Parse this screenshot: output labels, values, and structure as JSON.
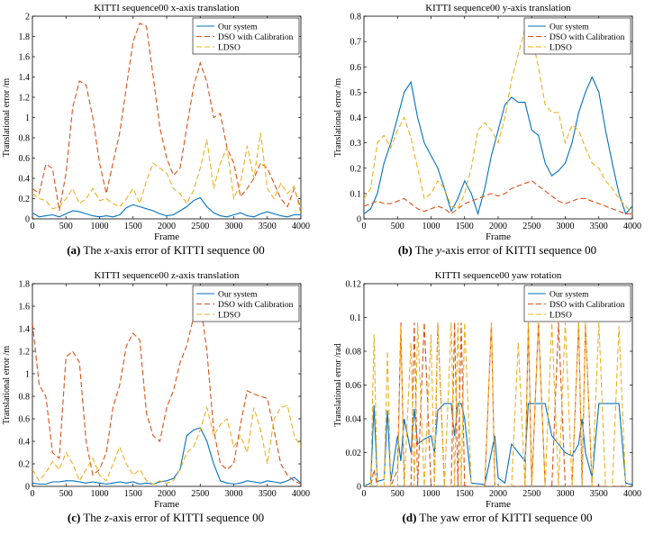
{
  "chart_data": [
    {
      "type": "line",
      "title": "KITTI sequence00 x-axis translation",
      "xlabel": "Frame",
      "ylabel": "Translational error /m",
      "xlim": [
        0,
        4000
      ],
      "ylim": [
        0,
        2
      ],
      "xticks": [
        "0",
        "500",
        "1000",
        "1500",
        "2000",
        "2500",
        "3000",
        "3500",
        "4000"
      ],
      "yticks": [
        "0",
        "0.2",
        "0.4",
        "0.6",
        "0.8",
        "1",
        "1.2",
        "1.4",
        "1.6",
        "1.8",
        "2"
      ],
      "legend_position": "top-right",
      "x": [
        0,
        100,
        200,
        300,
        400,
        500,
        600,
        700,
        800,
        900,
        1000,
        1100,
        1200,
        1300,
        1400,
        1500,
        1600,
        1700,
        1800,
        1900,
        2000,
        2100,
        2200,
        2300,
        2400,
        2500,
        2600,
        2700,
        2800,
        2900,
        3000,
        3100,
        3200,
        3300,
        3400,
        3500,
        3600,
        3700,
        3800,
        3900,
        4000
      ],
      "series": [
        {
          "name": "Our system",
          "color": "#0072BD",
          "dash": "solid",
          "values": [
            0.06,
            0.02,
            0.03,
            0.04,
            0.02,
            0.05,
            0.08,
            0.07,
            0.05,
            0.03,
            0.02,
            0.03,
            0.02,
            0.04,
            0.11,
            0.14,
            0.12,
            0.1,
            0.08,
            0.05,
            0.03,
            0.04,
            0.08,
            0.12,
            0.18,
            0.21,
            0.12,
            0.06,
            0.03,
            0.02,
            0.04,
            0.06,
            0.03,
            0.02,
            0.05,
            0.07,
            0.05,
            0.03,
            0.02,
            0.04,
            0.04
          ]
        },
        {
          "name": "DSO with Calibration",
          "color": "#D95319",
          "dash": "6,3",
          "values": [
            0.3,
            0.25,
            0.54,
            0.5,
            0.08,
            0.45,
            1.1,
            1.36,
            1.32,
            1.0,
            0.55,
            0.25,
            0.55,
            0.85,
            1.3,
            1.75,
            1.93,
            1.9,
            1.4,
            0.9,
            0.6,
            0.43,
            0.5,
            0.9,
            1.3,
            1.54,
            1.35,
            1.0,
            1.04,
            0.7,
            0.55,
            0.22,
            0.3,
            0.4,
            0.55,
            0.5,
            0.35,
            0.2,
            0.12,
            0.3,
            0.1
          ]
        },
        {
          "name": "LDSO",
          "color": "#EDB120",
          "dash": "6,3",
          "values": [
            0.25,
            0.2,
            0.18,
            0.1,
            0.12,
            0.2,
            0.3,
            0.15,
            0.2,
            0.3,
            0.18,
            0.2,
            0.15,
            0.12,
            0.2,
            0.3,
            0.15,
            0.38,
            0.55,
            0.5,
            0.45,
            0.3,
            0.25,
            0.15,
            0.28,
            0.5,
            0.78,
            0.3,
            0.55,
            0.7,
            0.2,
            0.35,
            0.72,
            0.4,
            0.85,
            0.3,
            0.2,
            0.35,
            0.25,
            0.32,
            0.05
          ]
        }
      ]
    },
    {
      "type": "line",
      "title": "KITTI sequence00 y-axis translation",
      "xlabel": "Frame",
      "ylabel": "Translational error /m",
      "xlim": [
        0,
        4000
      ],
      "ylim": [
        0,
        0.8
      ],
      "xticks": [
        "0",
        "500",
        "1000",
        "1500",
        "2000",
        "2500",
        "3000",
        "3500",
        "4000"
      ],
      "yticks": [
        "0",
        "0.1",
        "0.2",
        "0.3",
        "0.4",
        "0.5",
        "0.6",
        "0.7",
        "0.8"
      ],
      "legend_position": "top-right",
      "x": [
        0,
        100,
        200,
        300,
        400,
        500,
        600,
        700,
        800,
        900,
        1000,
        1100,
        1200,
        1300,
        1400,
        1500,
        1600,
        1700,
        1800,
        1900,
        2000,
        2100,
        2200,
        2300,
        2400,
        2500,
        2600,
        2700,
        2800,
        2900,
        3000,
        3100,
        3200,
        3300,
        3400,
        3500,
        3600,
        3700,
        3800,
        3900,
        4000
      ],
      "series": [
        {
          "name": "Our system",
          "color": "#0072BD",
          "dash": "solid",
          "values": [
            0.02,
            0.04,
            0.1,
            0.22,
            0.3,
            0.4,
            0.5,
            0.54,
            0.4,
            0.3,
            0.25,
            0.2,
            0.12,
            0.03,
            0.08,
            0.15,
            0.1,
            0.02,
            0.12,
            0.25,
            0.35,
            0.45,
            0.48,
            0.46,
            0.46,
            0.35,
            0.33,
            0.22,
            0.17,
            0.19,
            0.22,
            0.3,
            0.42,
            0.5,
            0.56,
            0.5,
            0.35,
            0.22,
            0.1,
            0.02,
            0.05
          ]
        },
        {
          "name": "DSO with Calibration",
          "color": "#D95319",
          "dash": "6,3",
          "values": [
            0.05,
            0.06,
            0.07,
            0.06,
            0.06,
            0.07,
            0.08,
            0.06,
            0.04,
            0.03,
            0.04,
            0.05,
            0.04,
            0.02,
            0.04,
            0.06,
            0.07,
            0.08,
            0.09,
            0.1,
            0.09,
            0.1,
            0.12,
            0.13,
            0.14,
            0.15,
            0.13,
            0.11,
            0.09,
            0.07,
            0.06,
            0.07,
            0.08,
            0.08,
            0.07,
            0.06,
            0.05,
            0.04,
            0.03,
            0.02,
            0.02
          ]
        },
        {
          "name": "LDSO",
          "color": "#EDB120",
          "dash": "6,3",
          "values": [
            0.08,
            0.12,
            0.3,
            0.33,
            0.28,
            0.35,
            0.4,
            0.32,
            0.2,
            0.08,
            0.1,
            0.15,
            0.12,
            0.05,
            0.04,
            0.1,
            0.2,
            0.35,
            0.38,
            0.35,
            0.3,
            0.4,
            0.55,
            0.65,
            0.75,
            0.72,
            0.6,
            0.45,
            0.42,
            0.42,
            0.3,
            0.37,
            0.35,
            0.28,
            0.22,
            0.2,
            0.15,
            0.12,
            0.08,
            0.05,
            0.02
          ]
        }
      ]
    },
    {
      "type": "line",
      "title": "KITTI sequence00 z-axis translation",
      "xlabel": "Frame",
      "ylabel": "Translational error /m",
      "xlim": [
        0,
        4000
      ],
      "ylim": [
        0,
        1.8
      ],
      "xticks": [
        "0",
        "500",
        "1000",
        "1500",
        "2000",
        "2500",
        "3000",
        "3500",
        "4000"
      ],
      "yticks": [
        "0",
        "0.2",
        "0.4",
        "0.6",
        "0.8",
        "1",
        "1.2",
        "1.4",
        "1.6",
        "1.8"
      ],
      "legend_position": "top-right",
      "x": [
        0,
        100,
        200,
        300,
        400,
        500,
        600,
        700,
        800,
        900,
        1000,
        1100,
        1200,
        1300,
        1400,
        1500,
        1600,
        1700,
        1800,
        1900,
        2000,
        2100,
        2200,
        2300,
        2400,
        2500,
        2600,
        2700,
        2800,
        2900,
        3000,
        3100,
        3200,
        3300,
        3400,
        3500,
        3600,
        3700,
        3800,
        3900,
        4000
      ],
      "series": [
        {
          "name": "Our system",
          "color": "#0072BD",
          "dash": "solid",
          "values": [
            0.03,
            0.02,
            0.02,
            0.04,
            0.04,
            0.05,
            0.05,
            0.04,
            0.03,
            0.04,
            0.03,
            0.02,
            0.03,
            0.04,
            0.03,
            0.04,
            0.02,
            0.03,
            0.02,
            0.04,
            0.05,
            0.07,
            0.15,
            0.45,
            0.5,
            0.52,
            0.4,
            0.2,
            0.05,
            0.03,
            0.02,
            0.03,
            0.05,
            0.04,
            0.03,
            0.05,
            0.04,
            0.03,
            0.05,
            0.08,
            0.03
          ]
        },
        {
          "name": "DSO with Calibration",
          "color": "#D95319",
          "dash": "6,3",
          "values": [
            1.45,
            0.9,
            0.8,
            0.3,
            0.25,
            1.15,
            1.2,
            1.1,
            0.4,
            0.1,
            0.15,
            0.3,
            0.7,
            0.9,
            1.25,
            1.36,
            1.3,
            0.65,
            0.45,
            0.4,
            0.7,
            0.85,
            1.1,
            1.25,
            1.5,
            1.65,
            1.2,
            0.5,
            0.2,
            0.15,
            0.2,
            0.55,
            0.85,
            0.82,
            0.8,
            0.78,
            0.5,
            0.2,
            0.1,
            0.05,
            0.02
          ]
        },
        {
          "name": "LDSO",
          "color": "#EDB120",
          "dash": "6,3",
          "values": [
            0.15,
            0.05,
            0.12,
            0.22,
            0.15,
            0.3,
            0.2,
            0.05,
            0.15,
            0.25,
            0.1,
            0.05,
            0.2,
            0.35,
            0.2,
            0.1,
            0.15,
            0.05,
            0.02,
            0.05,
            0.03,
            0.05,
            0.15,
            0.3,
            0.35,
            0.5,
            0.7,
            0.45,
            0.55,
            0.6,
            0.35,
            0.45,
            0.3,
            0.7,
            0.5,
            0.2,
            0.6,
            0.7,
            0.72,
            0.45,
            0.35
          ]
        }
      ]
    },
    {
      "type": "line",
      "title": "KITTI sequence00 yaw rotation",
      "xlabel": "Frame",
      "ylabel": "Translational error /rad",
      "xlim": [
        0,
        4000
      ],
      "ylim": [
        0,
        0.12
      ],
      "xticks": [
        "0",
        "500",
        "1000",
        "1500",
        "2000",
        "2500",
        "3000",
        "3500",
        "4000"
      ],
      "yticks": [
        "0",
        "0.02",
        "0.04",
        "0.06",
        "0.08",
        "0.1",
        "0.12"
      ],
      "legend_position": "top-right",
      "x": [
        0,
        100,
        150,
        200,
        300,
        350,
        400,
        500,
        550,
        600,
        700,
        750,
        800,
        900,
        1000,
        1050,
        1100,
        1200,
        1300,
        1350,
        1400,
        1450,
        1500,
        1600,
        1800,
        1900,
        1950,
        2000,
        2100,
        2200,
        2300,
        2400,
        2450,
        2500,
        2600,
        2700,
        2800,
        2900,
        3000,
        3100,
        3200,
        3250,
        3300,
        3400,
        3500,
        3600,
        3700,
        3800,
        3900,
        4000
      ],
      "series": [
        {
          "name": "Our system",
          "color": "#0072BD",
          "dash": "solid",
          "values": [
            0.0,
            0.002,
            0.048,
            0.003,
            0.004,
            0.045,
            0.003,
            0.03,
            0.015,
            0.04,
            0.02,
            0.046,
            0.025,
            0.028,
            0.03,
            0.02,
            0.045,
            0.049,
            0.049,
            0.03,
            0.049,
            0.049,
            0.04,
            0.002,
            0.001,
            0.02,
            0.03,
            0.005,
            0.002,
            0.025,
            0.02,
            0.015,
            0.049,
            0.049,
            0.049,
            0.049,
            0.03,
            0.025,
            0.02,
            0.018,
            0.025,
            0.04,
            0.02,
            0.005,
            0.049,
            0.049,
            0.049,
            0.049,
            0.002,
            0.001
          ]
        },
        {
          "name": "DSO with Calibration",
          "color": "#D95319",
          "dash": "6,3",
          "values": [
            0.0,
            0.0,
            0.01,
            0.0,
            0.0,
            0.0,
            0.0,
            0.01,
            0.097,
            0.0,
            0.0,
            0.097,
            0.0,
            0.097,
            0.0,
            0.0,
            0.097,
            0.0,
            0.0,
            0.097,
            0.0,
            0.097,
            0.0,
            0.0,
            0.0,
            0.097,
            0.0,
            0.0,
            0.0,
            0.0,
            0.0,
            0.0,
            0.097,
            0.0,
            0.097,
            0.0,
            0.0,
            0.097,
            0.0,
            0.0,
            0.097,
            0.0,
            0.097,
            0.0,
            0.0,
            0.0,
            0.0,
            0.0,
            0.0,
            0.0
          ]
        },
        {
          "name": "LDSO",
          "color": "#EDB120",
          "dash": "6,3",
          "values": [
            0.0,
            0.0,
            0.09,
            0.0,
            0.0,
            0.08,
            0.0,
            0.0,
            0.095,
            0.0,
            0.085,
            0.0,
            0.097,
            0.0,
            0.09,
            0.0,
            0.097,
            0.0,
            0.097,
            0.0,
            0.097,
            0.0,
            0.097,
            0.0,
            0.0,
            0.097,
            0.0,
            0.0,
            0.0,
            0.0,
            0.085,
            0.0,
            0.097,
            0.0,
            0.097,
            0.0,
            0.097,
            0.0,
            0.097,
            0.0,
            0.097,
            0.0,
            0.097,
            0.0,
            0.097,
            0.0,
            0.0,
            0.095,
            0.0,
            0.0
          ]
        }
      ]
    }
  ],
  "captions": [
    {
      "label": "(a)",
      "pre": " The ",
      "var": "x",
      "post": "-axis error of KITTI sequence 00"
    },
    {
      "label": "(b)",
      "pre": " The ",
      "var": "y",
      "post": "-axis error of KITTI sequence 00"
    },
    {
      "label": "(c)",
      "pre": " The ",
      "var": "z",
      "post": "-axis error of KITTI sequence 00"
    },
    {
      "label": "(d)",
      "pre": " The yaw error of KITTI sequence 00",
      "var": "",
      "post": ""
    }
  ]
}
